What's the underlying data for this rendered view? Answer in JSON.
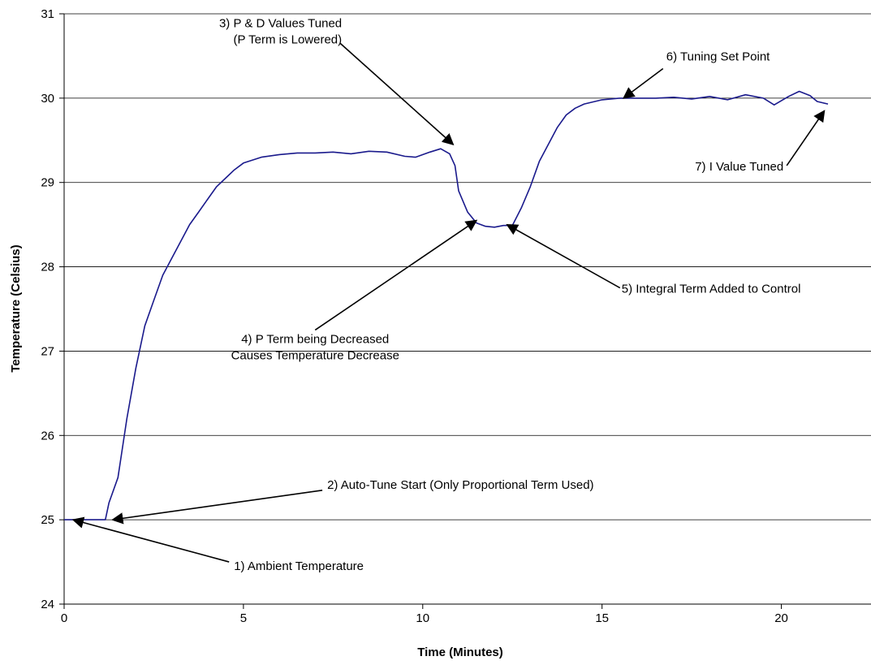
{
  "chart_data": {
    "type": "line",
    "title": "",
    "xlabel": "Time (Minutes)",
    "ylabel": "Temperature (Celsius)",
    "xlim": [
      0,
      22.5
    ],
    "ylim": [
      24,
      31
    ],
    "x_ticks": [
      0,
      5,
      10,
      15,
      20
    ],
    "y_ticks": [
      24,
      25,
      26,
      27,
      28,
      29,
      30,
      31
    ],
    "grid": "horizontal",
    "line_color": "#1a1a8c",
    "series": [
      {
        "points": [
          [
            0,
            25.0
          ],
          [
            0.5,
            25.0
          ],
          [
            1.0,
            25.0
          ],
          [
            1.15,
            25.0
          ],
          [
            1.25,
            25.2
          ],
          [
            1.5,
            25.5
          ],
          [
            1.75,
            26.2
          ],
          [
            2.0,
            26.8
          ],
          [
            2.25,
            27.3
          ],
          [
            2.5,
            27.6
          ],
          [
            2.75,
            27.9
          ],
          [
            3.0,
            28.1
          ],
          [
            3.25,
            28.3
          ],
          [
            3.5,
            28.5
          ],
          [
            3.75,
            28.65
          ],
          [
            4.0,
            28.8
          ],
          [
            4.25,
            28.95
          ],
          [
            4.5,
            29.05
          ],
          [
            4.75,
            29.15
          ],
          [
            5.0,
            29.23
          ],
          [
            5.5,
            29.3
          ],
          [
            6.0,
            29.33
          ],
          [
            6.5,
            29.35
          ],
          [
            7.0,
            29.35
          ],
          [
            7.5,
            29.36
          ],
          [
            8.0,
            29.34
          ],
          [
            8.5,
            29.37
          ],
          [
            9.0,
            29.36
          ],
          [
            9.5,
            29.31
          ],
          [
            9.8,
            29.3
          ],
          [
            10.2,
            29.36
          ],
          [
            10.5,
            29.4
          ],
          [
            10.75,
            29.34
          ],
          [
            10.9,
            29.2
          ],
          [
            11.0,
            28.9
          ],
          [
            11.25,
            28.65
          ],
          [
            11.5,
            28.52
          ],
          [
            11.75,
            28.48
          ],
          [
            12.0,
            28.47
          ],
          [
            12.25,
            28.49
          ],
          [
            12.5,
            28.49
          ],
          [
            12.75,
            28.7
          ],
          [
            13.0,
            28.95
          ],
          [
            13.25,
            29.25
          ],
          [
            13.5,
            29.45
          ],
          [
            13.75,
            29.65
          ],
          [
            14.0,
            29.8
          ],
          [
            14.25,
            29.88
          ],
          [
            14.5,
            29.93
          ],
          [
            15.0,
            29.98
          ],
          [
            15.5,
            30.0
          ],
          [
            16.0,
            30.0
          ],
          [
            16.5,
            30.0
          ],
          [
            17.0,
            30.01
          ],
          [
            17.5,
            29.99
          ],
          [
            18.0,
            30.02
          ],
          [
            18.5,
            29.98
          ],
          [
            19.0,
            30.04
          ],
          [
            19.5,
            30.0
          ],
          [
            19.8,
            29.92
          ],
          [
            20.2,
            30.02
          ],
          [
            20.5,
            30.08
          ],
          [
            20.8,
            30.03
          ],
          [
            21.0,
            29.96
          ],
          [
            21.3,
            29.93
          ]
        ]
      }
    ],
    "annotations": [
      {
        "id": "ambient",
        "lines": [
          "1) Ambient Temperature"
        ],
        "point": [
          0.25,
          25.0
        ],
        "tail": [
          4.6,
          24.5
        ]
      },
      {
        "id": "autotune",
        "lines": [
          "2) Auto-Tune Start (Only Proportional Term Used)"
        ],
        "point": [
          1.35,
          25.0
        ],
        "tail": [
          7.2,
          25.35
        ]
      },
      {
        "id": "pd-tuned",
        "lines": [
          "3) P & D Values Tuned",
          "(P Term is Lowered)"
        ],
        "point": [
          10.85,
          29.45
        ],
        "tail": [
          7.7,
          30.65
        ]
      },
      {
        "id": "p-decreased",
        "lines": [
          "4) P Term being Decreased",
          "Causes Temperature Decrease"
        ],
        "point": [
          11.5,
          28.55
        ],
        "tail": [
          7.0,
          27.25
        ]
      },
      {
        "id": "integral",
        "lines": [
          "5) Integral Term Added to Control"
        ],
        "point": [
          12.35,
          28.5
        ],
        "tail": [
          15.5,
          27.75
        ]
      },
      {
        "id": "setpoint",
        "lines": [
          "6) Tuning Set Point"
        ],
        "point": [
          15.6,
          30.0
        ],
        "tail": [
          16.7,
          30.35
        ]
      },
      {
        "id": "i-tuned",
        "lines": [
          "7) I Value Tuned"
        ],
        "point": [
          21.2,
          29.85
        ],
        "tail": [
          20.15,
          29.2
        ]
      }
    ]
  }
}
